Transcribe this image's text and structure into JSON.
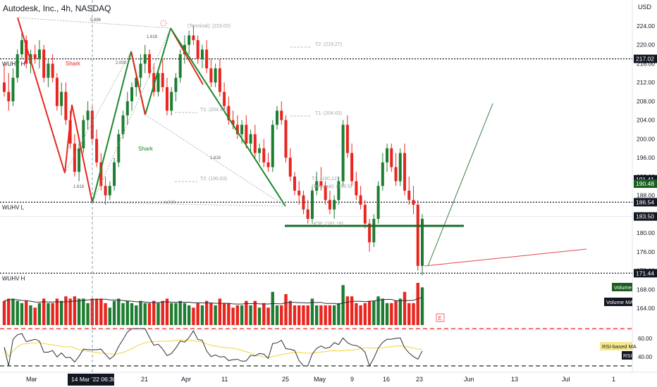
{
  "header": {
    "title": "Autodesk, Inc., 4h, NASDAQ",
    "currency": "USD"
  },
  "colors": {
    "up": "#1e7d32",
    "down": "#e8261f",
    "pattern_red": "#e8261f",
    "pattern_green": "#1b8a2a",
    "projection_green": "#3a7d44",
    "projection_red": "#e8434b",
    "rsi_line": "#2a2e39",
    "rsi_ma": "#f2d33a",
    "volume_ma": "#2a2e39",
    "dashed_red": "#e8261f"
  },
  "price_axis": {
    "ticks": [
      "224.00",
      "220.00",
      "216.00",
      "212.00",
      "208.00",
      "204.00",
      "200.00",
      "196.00",
      "192.00",
      "188.00",
      "184.00",
      "180.00",
      "176.00",
      "172.00",
      "168.00",
      "164.00"
    ],
    "badges": [
      {
        "value": "217.02",
        "style": "dark"
      },
      {
        "value": "191.41",
        "style": "dark"
      },
      {
        "value": "190.48",
        "style": "green"
      },
      {
        "value": "186.54",
        "style": "dark"
      },
      {
        "value": "183.50",
        "style": "dark"
      },
      {
        "value": "171.44",
        "style": "dark"
      }
    ]
  },
  "levels": [
    {
      "label": "WUHV H",
      "value": 217.02
    },
    {
      "label": "WUHV L",
      "value": 186.54
    },
    {
      "label": "WUHV H",
      "value": 171.44
    }
  ],
  "time_axis": {
    "labels": [
      "Mar",
      "14 Mar '22  06:30",
      "21",
      "Apr",
      "11",
      "25",
      "May",
      "9",
      "16",
      "23",
      "Jun",
      "13",
      "Jul",
      "1"
    ],
    "highlight": "14 Mar '22  06:30"
  },
  "annotations": {
    "shark_labels": [
      "Shark",
      "Shark"
    ],
    "fib_labels": [
      "0.886",
      "1.618",
      "2.000",
      "1.618",
      "1.618",
      "1.618",
      "1.618"
    ],
    "targets": [
      "(Terminal): (223.02)",
      "T2: (219.27)",
      "T1: (204.63)",
      "T1: (204.63)",
      "T2: (190.63)",
      "T1: (190.12)",
      "(Terminal): (188.9)",
      "HOP: (181.18)"
    ]
  },
  "indicators": {
    "volume_label": "Volume",
    "volume_ma_label": "Volume MA",
    "rsi_ma_label": "RSI-based MA",
    "rsi_label": "RSI",
    "rsi_ticks": [
      "60.00",
      "40.00"
    ],
    "e_marker": "E"
  },
  "chart_data": {
    "type": "candlestick",
    "symbol": "Autodesk, Inc.",
    "interval": "4h",
    "exchange": "NASDAQ",
    "ylim": [
      162,
      226
    ],
    "candles": [
      [
        212,
        216,
        209,
        210
      ],
      [
        210,
        214,
        206,
        208
      ],
      [
        208,
        215,
        207,
        213
      ],
      [
        213,
        219,
        212,
        218
      ],
      [
        218,
        223,
        217,
        221
      ],
      [
        221,
        222,
        215,
        216
      ],
      [
        216,
        219,
        214,
        218
      ],
      [
        218,
        220,
        216,
        217
      ],
      [
        217,
        221,
        215,
        219
      ],
      [
        219,
        220,
        212,
        213
      ],
      [
        213,
        217,
        211,
        216
      ],
      [
        216,
        218,
        212,
        213
      ],
      [
        213,
        214,
        206,
        207
      ],
      [
        207,
        212,
        205,
        210
      ],
      [
        210,
        212,
        203,
        204
      ],
      [
        204,
        206,
        198,
        199
      ],
      [
        199,
        201,
        192,
        193
      ],
      [
        193,
        199,
        191,
        198
      ],
      [
        198,
        205,
        197,
        204
      ],
      [
        204,
        208,
        202,
        206
      ],
      [
        206,
        207,
        199,
        200
      ],
      [
        200,
        202,
        194,
        195
      ],
      [
        195,
        197,
        189,
        190
      ],
      [
        190,
        192,
        186,
        188
      ],
      [
        188,
        191,
        187,
        190
      ],
      [
        190,
        196,
        189,
        195
      ],
      [
        195,
        202,
        194,
        201
      ],
      [
        201,
        206,
        200,
        205
      ],
      [
        205,
        210,
        203,
        208
      ],
      [
        208,
        212,
        206,
        211
      ],
      [
        211,
        214,
        209,
        213
      ],
      [
        213,
        218,
        211,
        216
      ],
      [
        216,
        220,
        214,
        218
      ],
      [
        218,
        219,
        213,
        214
      ],
      [
        214,
        216,
        209,
        210
      ],
      [
        210,
        215,
        209,
        214
      ],
      [
        214,
        217,
        210,
        211
      ],
      [
        211,
        213,
        205,
        206
      ],
      [
        206,
        211,
        205,
        210
      ],
      [
        210,
        214,
        208,
        213
      ],
      [
        213,
        219,
        212,
        218
      ],
      [
        218,
        222,
        216,
        220
      ],
      [
        220,
        223,
        218,
        222
      ],
      [
        222,
        224,
        220,
        221
      ],
      [
        221,
        222,
        216,
        217
      ],
      [
        217,
        220,
        215,
        219
      ],
      [
        219,
        221,
        214,
        215
      ],
      [
        215,
        217,
        211,
        212
      ],
      [
        212,
        216,
        211,
        215
      ],
      [
        215,
        217,
        209,
        210
      ],
      [
        210,
        212,
        206,
        207
      ],
      [
        207,
        209,
        203,
        204
      ],
      [
        204,
        206,
        202,
        203
      ],
      [
        203,
        205,
        200,
        201
      ],
      [
        201,
        204,
        199,
        203
      ],
      [
        203,
        205,
        198,
        199
      ],
      [
        199,
        202,
        197,
        201
      ],
      [
        201,
        203,
        196,
        197
      ],
      [
        197,
        199,
        195,
        198
      ],
      [
        198,
        200,
        194,
        195
      ],
      [
        195,
        197,
        193,
        194
      ],
      [
        194,
        204,
        193,
        203
      ],
      [
        203,
        207,
        202,
        206
      ],
      [
        206,
        208,
        203,
        204
      ],
      [
        204,
        205,
        195,
        196
      ],
      [
        196,
        198,
        191,
        192
      ],
      [
        192,
        193,
        188,
        189
      ],
      [
        189,
        191,
        186,
        188
      ],
      [
        188,
        189,
        184,
        185
      ],
      [
        185,
        187,
        182,
        183
      ],
      [
        183,
        190,
        182,
        189
      ],
      [
        189,
        193,
        188,
        191
      ],
      [
        191,
        194,
        189,
        190
      ],
      [
        190,
        191,
        186,
        187
      ],
      [
        187,
        189,
        184,
        185
      ],
      [
        185,
        188,
        183,
        187
      ],
      [
        187,
        192,
        186,
        191
      ],
      [
        191,
        204,
        190,
        203
      ],
      [
        203,
        205,
        196,
        197
      ],
      [
        197,
        199,
        190,
        191
      ],
      [
        191,
        193,
        187,
        188
      ],
      [
        188,
        190,
        185,
        186
      ],
      [
        186,
        187,
        181,
        182
      ],
      [
        182,
        183,
        176,
        178
      ],
      [
        178,
        184,
        177,
        183
      ],
      [
        183,
        191,
        182,
        190
      ],
      [
        190,
        197,
        189,
        195
      ],
      [
        195,
        199,
        193,
        198
      ],
      [
        198,
        199,
        193,
        194
      ],
      [
        194,
        197,
        190,
        191
      ],
      [
        191,
        198,
        190,
        197
      ],
      [
        197,
        199,
        188,
        189
      ],
      [
        189,
        192,
        186,
        187
      ],
      [
        187,
        190,
        184,
        186
      ],
      [
        186,
        187,
        172,
        173
      ],
      [
        173,
        184,
        171,
        183
      ]
    ],
    "volume_ma": "line",
    "rsi": {
      "range": [
        30,
        70
      ],
      "levels": [
        60,
        40
      ]
    }
  }
}
